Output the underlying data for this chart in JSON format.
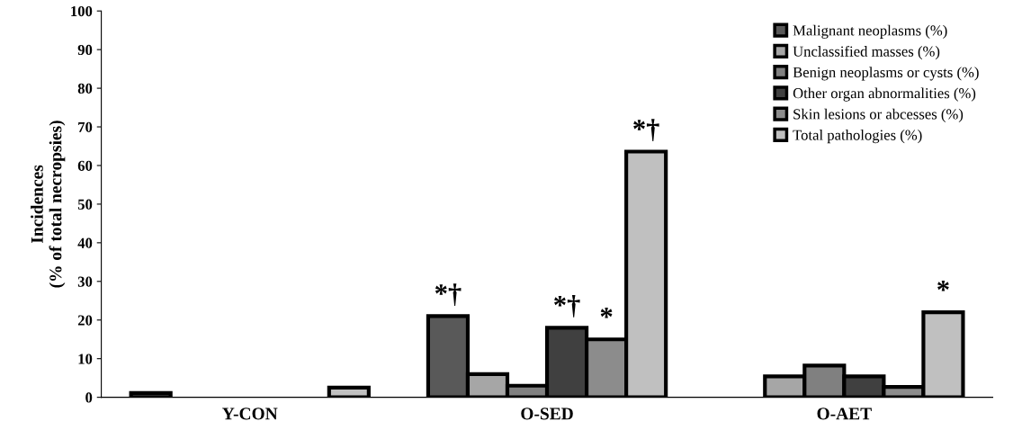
{
  "chart_data": {
    "type": "bar",
    "ylabel": "Incidences\n(% of total necropsies)",
    "categories": [
      "Y-CON",
      "O-SED",
      "O-AET"
    ],
    "series": [
      {
        "name": "Malignant neoplasms (%)",
        "color": "#595959",
        "values": [
          1.1,
          21,
          0
        ],
        "value_labels": [
          null,
          "*†",
          null
        ]
      },
      {
        "name": "Unclassified masses (%)",
        "color": "#a6a6a6",
        "values": [
          0,
          6,
          5.4
        ]
      },
      {
        "name": "Benign neoplasms or cysts (%)",
        "color": "#808080",
        "values": [
          0,
          3,
          8.2
        ]
      },
      {
        "name": "Other organ abnormalities (%)",
        "color": "#404040",
        "values": [
          0,
          18,
          5.4
        ],
        "value_labels": [
          null,
          "*†",
          null
        ]
      },
      {
        "name": "Skin lesions or abcesses (%)",
        "color": "#8c8c8c",
        "values": [
          0,
          15,
          2.7
        ],
        "value_labels": [
          null,
          "*",
          null
        ]
      },
      {
        "name": "Total pathologies (%)",
        "color": "#c0c0c0",
        "values": [
          2.5,
          63.6,
          22
        ],
        "value_labels": [
          null,
          "*†",
          "*"
        ]
      }
    ],
    "ylim": [
      0,
      100
    ],
    "yticks": [
      0,
      10,
      20,
      30,
      40,
      50,
      60,
      70,
      80,
      90,
      100
    ],
    "grid": false,
    "legend": "top right"
  }
}
